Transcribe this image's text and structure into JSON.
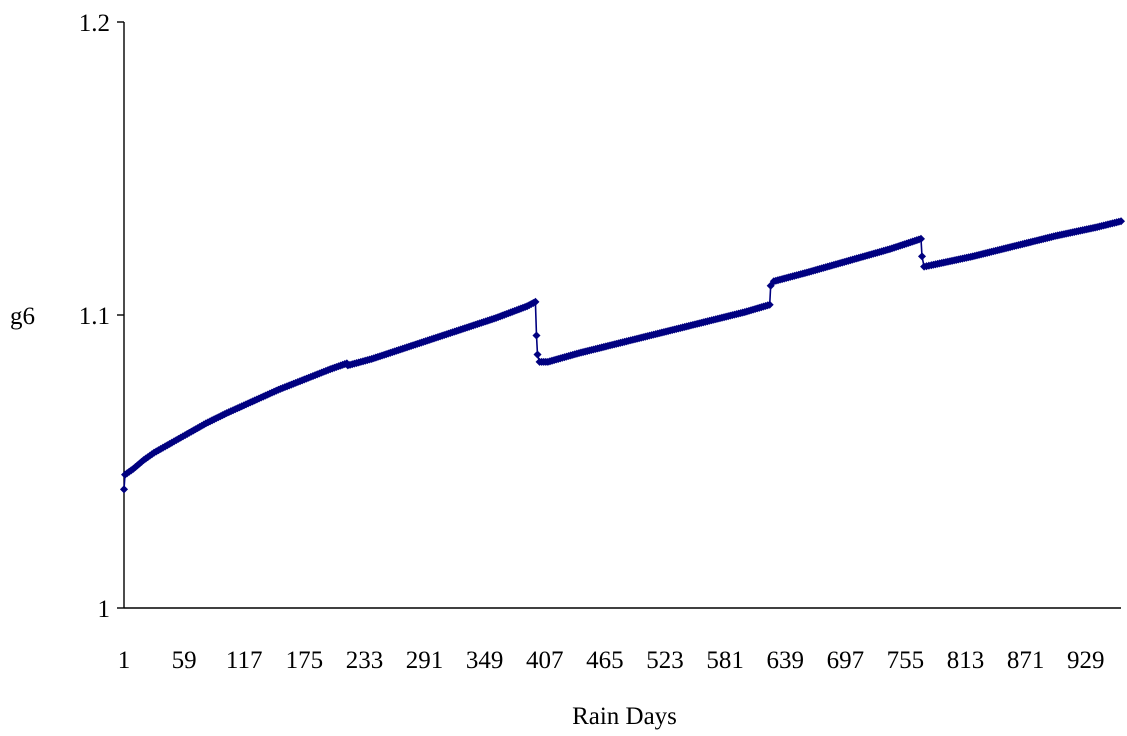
{
  "chart_data": {
    "type": "line",
    "title": "",
    "xlabel": "Rain Days",
    "ylabel": "g6",
    "ylim": [
      1,
      1.2
    ],
    "yticks": [
      1,
      1.1,
      1.2
    ],
    "ytick_labels": [
      "1",
      "1.1",
      "1.2"
    ],
    "xlim": [
      1,
      963
    ],
    "xticks": [
      1,
      59,
      117,
      175,
      233,
      291,
      349,
      407,
      465,
      523,
      581,
      639,
      697,
      755,
      813,
      871,
      929
    ],
    "grid": false,
    "legend": "none",
    "color": "#000080",
    "marker": "diamond",
    "series": [
      {
        "values": [
          [
            1,
            1.0405
          ],
          [
            2,
            1.0455
          ],
          [
            10,
            1.0475
          ],
          [
            20,
            1.0505
          ],
          [
            30,
            1.053
          ],
          [
            45,
            1.056
          ],
          [
            60,
            1.059
          ],
          [
            80,
            1.063
          ],
          [
            100,
            1.0665
          ],
          [
            125,
            1.0705
          ],
          [
            150,
            1.0745
          ],
          [
            175,
            1.078
          ],
          [
            200,
            1.0815
          ],
          [
            216,
            1.0835
          ],
          [
            217,
            1.0828
          ],
          [
            240,
            1.085
          ],
          [
            270,
            1.0885
          ],
          [
            300,
            1.092
          ],
          [
            330,
            1.0955
          ],
          [
            360,
            1.099
          ],
          [
            390,
            1.103
          ],
          [
            398,
            1.1045
          ],
          [
            399,
            1.093
          ],
          [
            400,
            1.0865
          ],
          [
            402,
            1.084
          ],
          [
            410,
            1.084
          ],
          [
            440,
            1.087
          ],
          [
            480,
            1.0905
          ],
          [
            520,
            1.094
          ],
          [
            560,
            1.0975
          ],
          [
            600,
            1.101
          ],
          [
            624,
            1.1035
          ],
          [
            625,
            1.11
          ],
          [
            628,
            1.1115
          ],
          [
            660,
            1.1145
          ],
          [
            700,
            1.1185
          ],
          [
            740,
            1.1225
          ],
          [
            770,
            1.126
          ],
          [
            771,
            1.12
          ],
          [
            773,
            1.1165
          ],
          [
            780,
            1.117
          ],
          [
            820,
            1.12
          ],
          [
            860,
            1.1235
          ],
          [
            900,
            1.127
          ],
          [
            940,
            1.13
          ],
          [
            963,
            1.132
          ]
        ]
      }
    ]
  }
}
